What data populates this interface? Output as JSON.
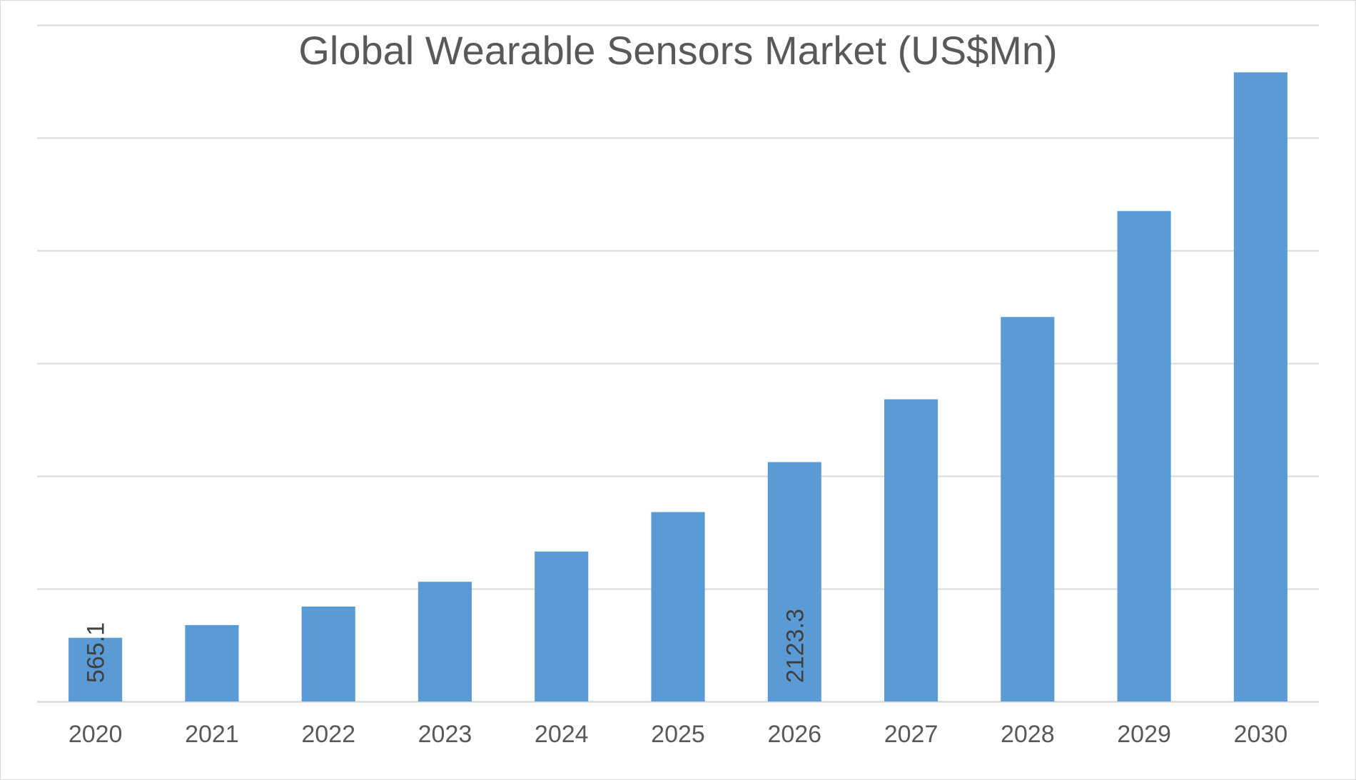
{
  "chart_data": {
    "type": "bar",
    "title": "Global Wearable Sensors Market (US$Mn)",
    "xlabel": "",
    "ylabel": "",
    "categories": [
      "2020",
      "2021",
      "2022",
      "2023",
      "2024",
      "2025",
      "2026",
      "2027",
      "2028",
      "2029",
      "2030"
    ],
    "values": [
      565.1,
      678,
      842,
      1062,
      1330,
      1680,
      2123.3,
      2680,
      3410,
      4350,
      5580
    ],
    "data_labels": {
      "0": "565.1",
      "6": "2123.3"
    },
    "ylim": [
      0,
      6000
    ],
    "grid_step": 1000,
    "gridlines": true,
    "y_tick_labels_shown": false,
    "legend": "none",
    "colors": {
      "bar": "#5b9bd5",
      "grid": "#d9d9d9",
      "text": "#595959",
      "label": "#404040"
    }
  }
}
